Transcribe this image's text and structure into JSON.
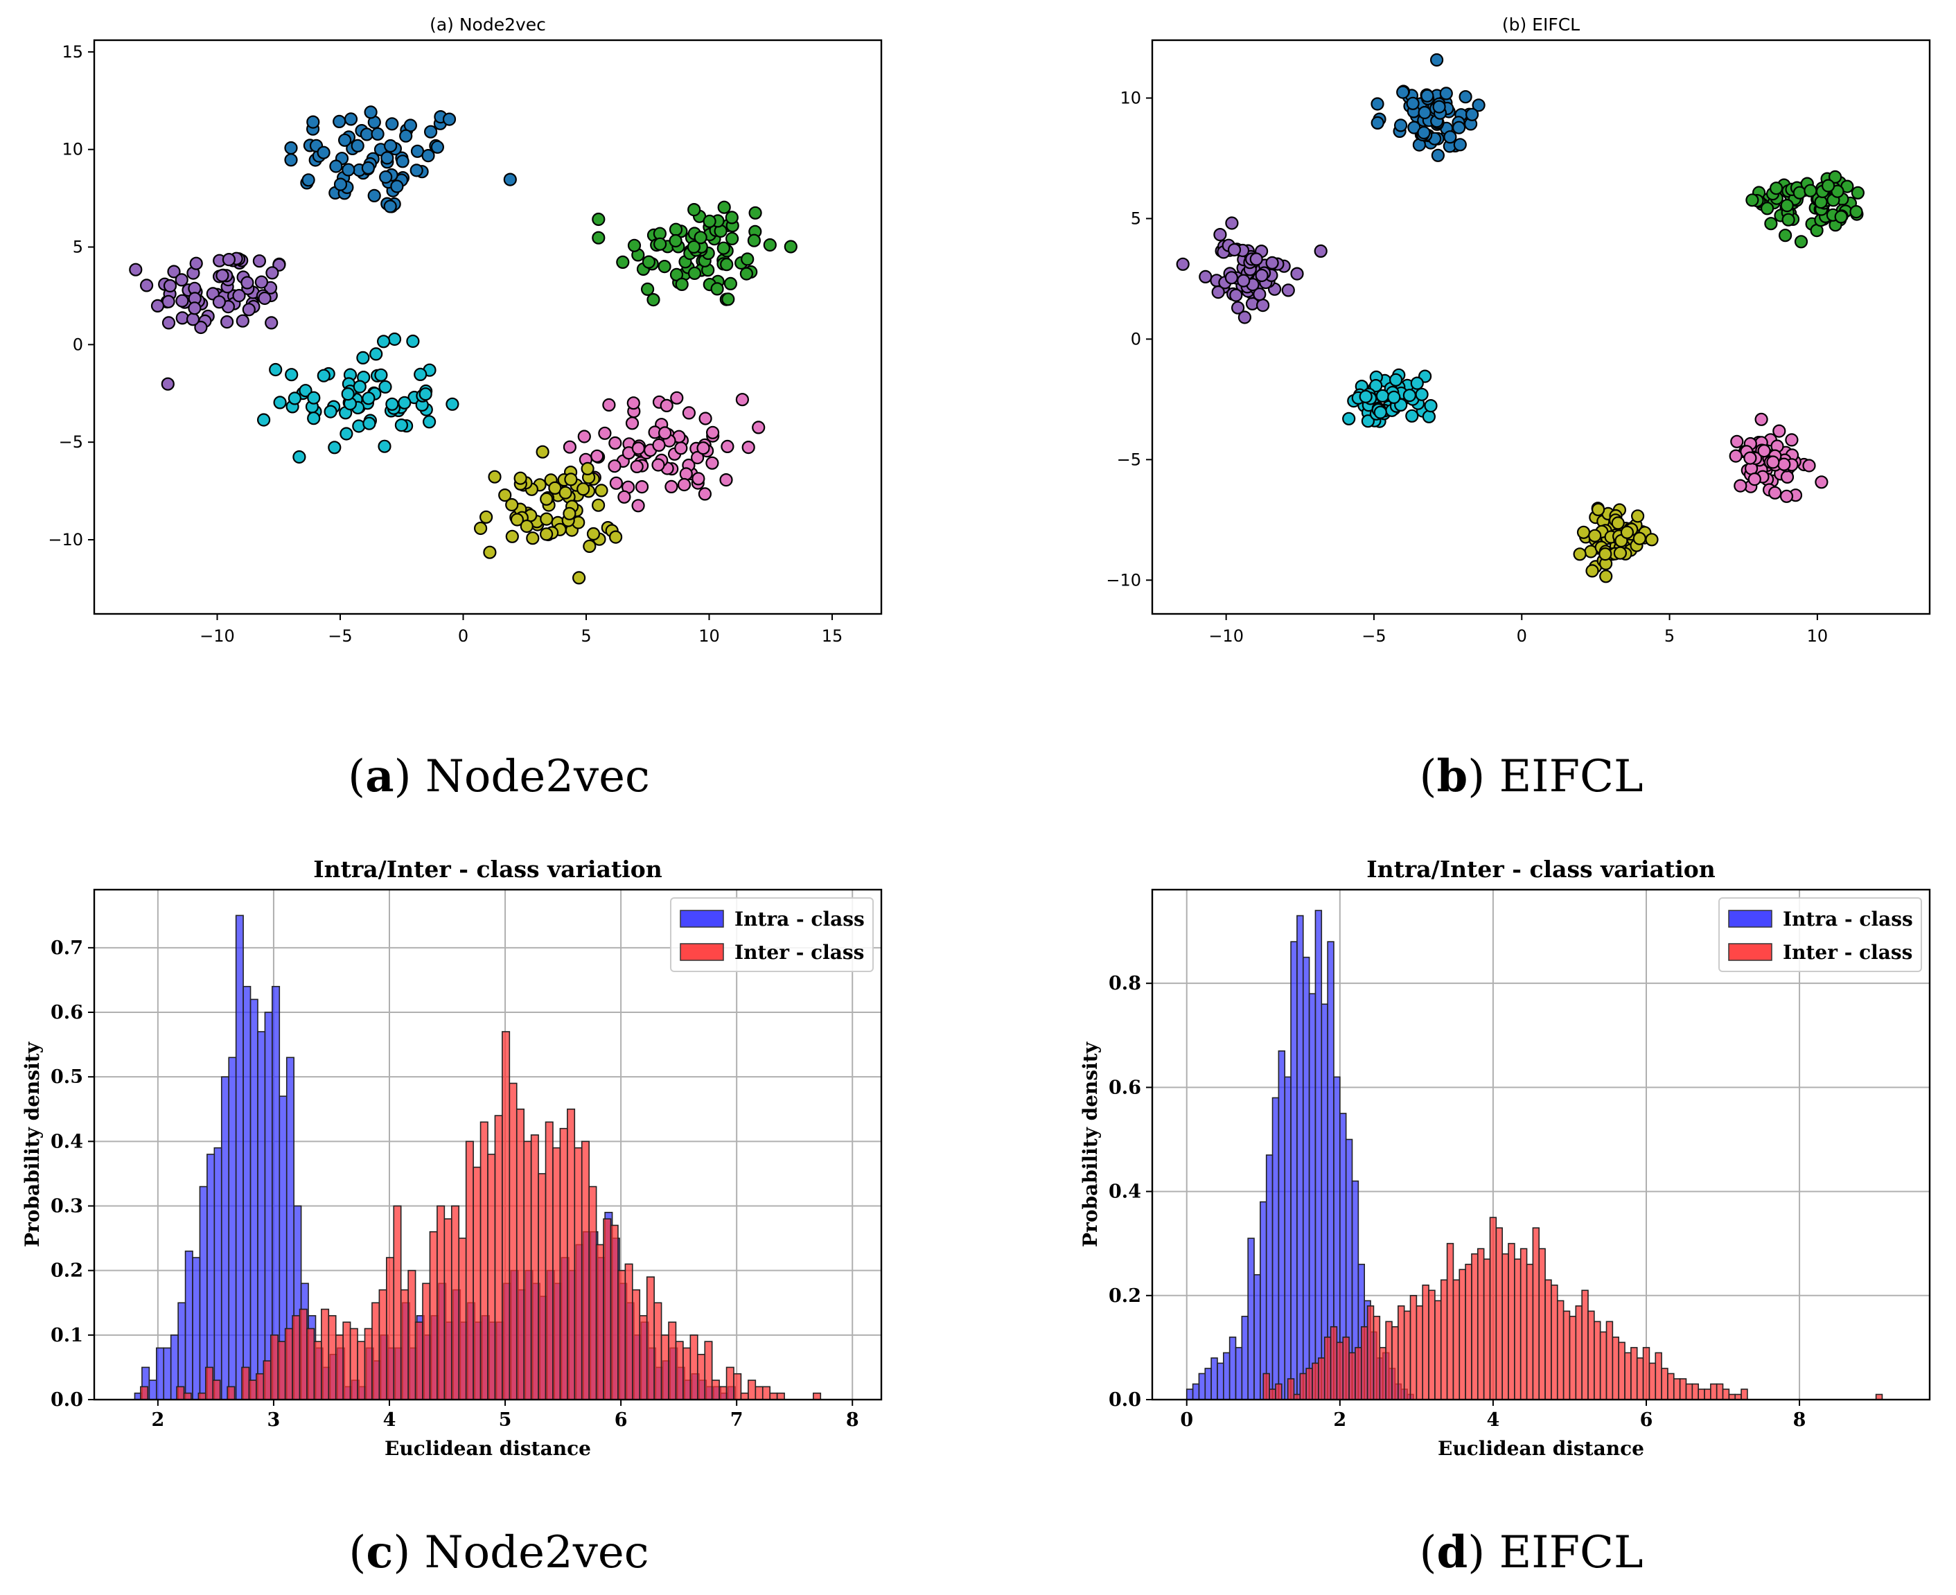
{
  "colors": {
    "blue": "#1f77b4",
    "green": "#2ca02c",
    "purple": "#9467bd",
    "cyan": "#17becf",
    "pink": "#e377c2",
    "olive": "#bcbd22",
    "intra": "#3333ff",
    "inter": "#ff3333"
  },
  "captions": {
    "a": {
      "letter": "a",
      "name": "Node2vec"
    },
    "b": {
      "letter": "b",
      "name": "EIFCL"
    },
    "c": {
      "letter": "c",
      "name": "Node2vec"
    },
    "d": {
      "letter": "d",
      "name": "EIFCL"
    }
  },
  "chart_data": [
    {
      "id": "a",
      "type": "scatter",
      "title": "(a) Node2vec",
      "xlim": [
        -15,
        17
      ],
      "ylim": [
        -13.8,
        15.6
      ],
      "xticks": [
        -10,
        -5,
        0,
        5,
        10,
        15
      ],
      "yticks": [
        -10,
        -5,
        0,
        5,
        10,
        15
      ],
      "xticklabels": [
        "−10",
        "−5",
        "0",
        "5",
        "10",
        "15"
      ],
      "yticklabels": [
        "−10",
        "−5",
        "0",
        "5",
        "10",
        "15"
      ],
      "clusters": [
        {
          "name": "cluster-blue",
          "color": "#1f77b4",
          "center": [
            -3.5,
            9.5
          ],
          "spread": [
            2.6,
            1.9
          ],
          "n": 70,
          "range_x": [
            -7,
            2
          ],
          "range_y": [
            5.5,
            14.2
          ]
        },
        {
          "name": "cluster-green",
          "color": "#2ca02c",
          "center": [
            9.5,
            4.8
          ],
          "spread": [
            2.2,
            1.9
          ],
          "n": 75,
          "range_x": [
            5.5,
            15.7
          ],
          "range_y": [
            -0.1,
            9.7
          ]
        },
        {
          "name": "cluster-purple",
          "color": "#9467bd",
          "center": [
            -9.8,
            2.7
          ],
          "spread": [
            1.9,
            1.5
          ],
          "n": 70,
          "range_x": [
            -13.5,
            -6
          ],
          "range_y": [
            -3.2,
            7.9
          ]
        },
        {
          "name": "cluster-cyan",
          "color": "#17becf",
          "center": [
            -4.2,
            -2.8
          ],
          "spread": [
            2.1,
            1.7
          ],
          "n": 65,
          "range_x": [
            -9.8,
            0
          ],
          "range_y": [
            -7,
            0.7
          ]
        },
        {
          "name": "cluster-pink",
          "color": "#e377c2",
          "center": [
            8.3,
            -5.3
          ],
          "spread": [
            2.1,
            1.7
          ],
          "n": 70,
          "range_x": [
            2.8,
            13
          ],
          "range_y": [
            -9.8,
            -2
          ]
        },
        {
          "name": "cluster-olive",
          "color": "#bcbd22",
          "center": [
            3.4,
            -8.5
          ],
          "spread": [
            1.9,
            1.6
          ],
          "n": 65,
          "range_x": [
            -2.2,
            6.2
          ],
          "range_y": [
            -12.5,
            -5.5
          ]
        }
      ]
    },
    {
      "id": "b",
      "type": "scatter",
      "title": "(b) EIFCL",
      "xlim": [
        -12.5,
        13.8
      ],
      "ylim": [
        -11.4,
        12.4
      ],
      "xticks": [
        -10,
        -5,
        0,
        5,
        10
      ],
      "yticks": [
        -10,
        -5,
        0,
        5,
        10
      ],
      "xticklabels": [
        "−10",
        "−5",
        "0",
        "5",
        "10"
      ],
      "yticklabels": [
        "−10",
        "−5",
        "0",
        "5",
        "10"
      ],
      "clusters": [
        {
          "name": "cluster-blue",
          "color": "#1f77b4",
          "center": [
            -3,
            9.2
          ],
          "spread": [
            1.0,
            0.9
          ],
          "n": 70,
          "range_x": [
            -5,
            0
          ],
          "range_y": [
            6.5,
            11.6
          ]
        },
        {
          "name": "cluster-green",
          "color": "#2ca02c",
          "center": [
            9.5,
            5.6
          ],
          "spread": [
            1.1,
            0.7
          ],
          "n": 75,
          "range_x": [
            7.5,
            12.5
          ],
          "range_y": [
            2.6,
            7.6
          ]
        },
        {
          "name": "cluster-purple",
          "color": "#9467bd",
          "center": [
            -9.3,
            2.7
          ],
          "spread": [
            0.9,
            0.9
          ],
          "n": 70,
          "range_x": [
            -11.5,
            -6.8
          ],
          "range_y": [
            -0.3,
            5.4
          ]
        },
        {
          "name": "cluster-cyan",
          "color": "#17becf",
          "center": [
            -4.5,
            -2.5
          ],
          "spread": [
            0.8,
            0.7
          ],
          "n": 65,
          "range_x": [
            -6.7,
            -1.2
          ],
          "range_y": [
            -4.7,
            -0.8
          ]
        },
        {
          "name": "cluster-pink",
          "color": "#e377c2",
          "center": [
            8.2,
            -5.2
          ],
          "spread": [
            0.9,
            0.8
          ],
          "n": 70,
          "range_x": [
            5.1,
            10.5
          ],
          "range_y": [
            -7.5,
            -2.8
          ]
        },
        {
          "name": "cluster-olive",
          "color": "#bcbd22",
          "center": [
            3.1,
            -8.2
          ],
          "spread": [
            0.8,
            0.8
          ],
          "n": 65,
          "range_x": [
            0.3,
            4.4
          ],
          "range_y": [
            -10.5,
            -5.5
          ]
        }
      ]
    },
    {
      "id": "c",
      "type": "bar",
      "title": "Intra/Inter - class variation",
      "xlabel": "Euclidean distance",
      "ylabel": "Probability density",
      "xlim": [
        1.45,
        8.25
      ],
      "ylim": [
        0,
        0.79
      ],
      "xticks": [
        2,
        3,
        4,
        5,
        6,
        7,
        8
      ],
      "yticks": [
        0.0,
        0.1,
        0.2,
        0.3,
        0.4,
        0.5,
        0.6,
        0.7
      ],
      "xticklabels": [
        "2",
        "3",
        "4",
        "5",
        "6",
        "7",
        "8"
      ],
      "yticklabels": [
        "0.0",
        "0.1",
        "0.2",
        "0.3",
        "0.4",
        "0.5",
        "0.6",
        "0.7"
      ],
      "legend": [
        "Intra - class",
        "Inter - class"
      ],
      "bin_width": 0.0625,
      "series": [
        {
          "name": "Intra - class",
          "color": "#3333ff",
          "start": 1.8,
          "values": [
            0.01,
            0.05,
            0.03,
            0.08,
            0.08,
            0.1,
            0.15,
            0.23,
            0.22,
            0.33,
            0.38,
            0.39,
            0.5,
            0.53,
            0.75,
            0.64,
            0.62,
            0.57,
            0.6,
            0.64,
            0.47,
            0.53,
            0.3,
            0.18,
            0.13,
            0.08,
            0.05,
            0.07,
            0.08,
            0.02,
            0.03,
            0.02,
            0.08,
            0.06,
            0.1,
            0.08,
            0.08,
            0.15,
            0.08,
            0.13,
            0.1,
            0.13,
            0.18,
            0.12,
            0.17,
            0.12,
            0.15,
            0.12,
            0.13,
            0.12,
            0.12,
            0.18,
            0.2,
            0.17,
            0.2,
            0.18,
            0.16,
            0.2,
            0.18,
            0.22,
            0.2,
            0.24,
            0.26,
            0.26,
            0.22,
            0.29,
            0.25,
            0.18,
            0.15,
            0.1,
            0.12,
            0.08,
            0.05,
            0.06,
            0.08,
            0.05,
            0.03,
            0.04,
            0.03,
            0.02,
            0.02,
            0.01,
            0.02
          ]
        },
        {
          "name": "Inter - class",
          "color": "#ff3333",
          "start": 1.85,
          "values": [
            0.02,
            0.0,
            0.0,
            0.0,
            0.0,
            0.02,
            0.01,
            0.0,
            0.01,
            0.05,
            0.03,
            0.0,
            0.02,
            0.0,
            0.05,
            0.03,
            0.04,
            0.06,
            0.1,
            0.09,
            0.11,
            0.13,
            0.14,
            0.11,
            0.09,
            0.14,
            0.13,
            0.1,
            0.12,
            0.11,
            0.09,
            0.11,
            0.15,
            0.17,
            0.22,
            0.3,
            0.17,
            0.2,
            0.12,
            0.18,
            0.26,
            0.3,
            0.28,
            0.3,
            0.25,
            0.4,
            0.36,
            0.43,
            0.38,
            0.44,
            0.57,
            0.49,
            0.45,
            0.4,
            0.41,
            0.35,
            0.43,
            0.39,
            0.42,
            0.45,
            0.39,
            0.4,
            0.33,
            0.24,
            0.28,
            0.27,
            0.2,
            0.21,
            0.17,
            0.13,
            0.19,
            0.15,
            0.1,
            0.12,
            0.09,
            0.08,
            0.1,
            0.07,
            0.09,
            0.03,
            0.02,
            0.05,
            0.04,
            0.01,
            0.03,
            0.02,
            0.02,
            0.01,
            0.01,
            0.0,
            0.0,
            0.0,
            0.0,
            0.01
          ]
        }
      ]
    },
    {
      "id": "d",
      "type": "bar",
      "title": "Intra/Inter - class variation",
      "xlabel": "Euclidean distance",
      "ylabel": "Probability density",
      "xlim": [
        -0.45,
        9.7
      ],
      "ylim": [
        0,
        0.98
      ],
      "xticks": [
        0,
        2,
        4,
        6,
        8
      ],
      "yticks": [
        0.0,
        0.2,
        0.4,
        0.6,
        0.8
      ],
      "xticklabels": [
        "0",
        "2",
        "4",
        "6",
        "8"
      ],
      "yticklabels": [
        "0.0",
        "0.2",
        "0.4",
        "0.6",
        "0.8"
      ],
      "legend": [
        "Intra - class",
        "Inter - class"
      ],
      "bin_width": 0.08,
      "series": [
        {
          "name": "Intra - class",
          "color": "#3333ff",
          "start": 0.0,
          "values": [
            0.02,
            0.03,
            0.05,
            0.06,
            0.08,
            0.07,
            0.09,
            0.12,
            0.1,
            0.16,
            0.31,
            0.24,
            0.38,
            0.47,
            0.58,
            0.67,
            0.62,
            0.88,
            0.93,
            0.85,
            0.78,
            0.94,
            0.76,
            0.88,
            0.62,
            0.55,
            0.5,
            0.42,
            0.26,
            0.19,
            0.13,
            0.08,
            0.09,
            0.06,
            0.03,
            0.02,
            0.01
          ]
        },
        {
          "name": "Inter - class",
          "color": "#ff3333",
          "start": 1.0,
          "values": [
            0.05,
            0.02,
            0.03,
            0.0,
            0.04,
            0.01,
            0.05,
            0.06,
            0.07,
            0.08,
            0.12,
            0.14,
            0.11,
            0.12,
            0.09,
            0.1,
            0.14,
            0.18,
            0.16,
            0.1,
            0.15,
            0.14,
            0.18,
            0.17,
            0.2,
            0.18,
            0.22,
            0.21,
            0.19,
            0.23,
            0.3,
            0.23,
            0.25,
            0.26,
            0.28,
            0.29,
            0.27,
            0.35,
            0.33,
            0.28,
            0.3,
            0.27,
            0.29,
            0.26,
            0.33,
            0.29,
            0.23,
            0.22,
            0.19,
            0.17,
            0.16,
            0.18,
            0.21,
            0.17,
            0.15,
            0.13,
            0.15,
            0.12,
            0.11,
            0.09,
            0.1,
            0.08,
            0.1,
            0.07,
            0.09,
            0.06,
            0.05,
            0.04,
            0.04,
            0.03,
            0.03,
            0.02,
            0.02,
            0.03,
            0.03,
            0.02,
            0.01,
            0.01,
            0.02,
            0.0,
            0.0,
            0.0,
            0.0,
            0.0,
            0.0,
            0.0,
            0.0,
            0.0,
            0.0,
            0.0,
            0.0,
            0.0,
            0.0,
            0.0,
            0.0,
            0.0,
            0.0,
            0.0,
            0.0,
            0.0,
            0.01
          ]
        }
      ]
    }
  ]
}
